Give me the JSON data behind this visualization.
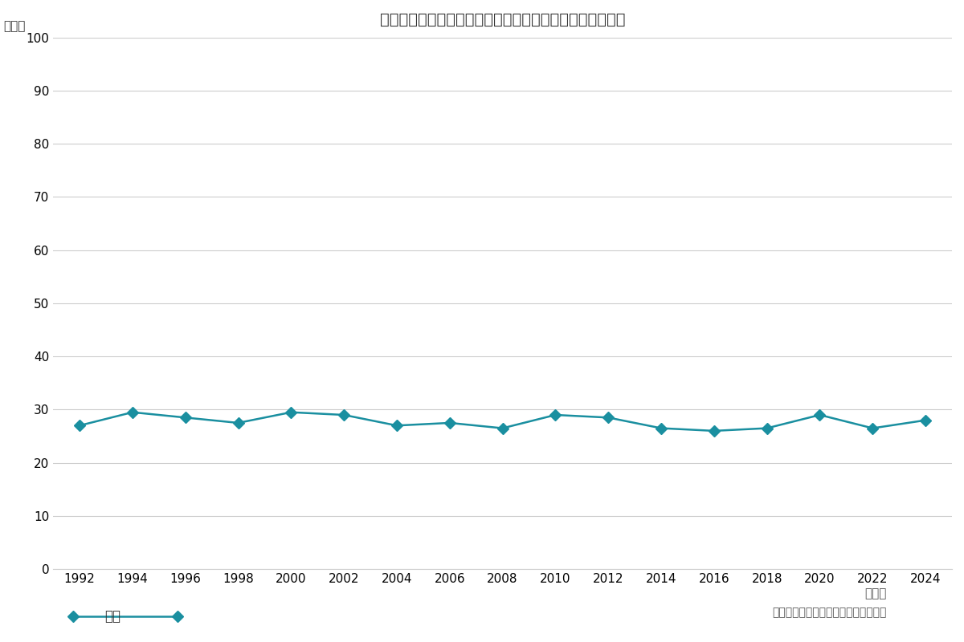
{
  "title": "同じ会社の異性を食事やお酒に１対１で誘ったことがある",
  "ylabel": "（％）",
  "xlabel_suffix": "（年）",
  "source_label": "（博報堂生活総研「生活定点」調査）",
  "legend_label": "全体",
  "years": [
    1992,
    1994,
    1996,
    1998,
    2000,
    2002,
    2004,
    2006,
    2008,
    2010,
    2012,
    2014,
    2016,
    2018,
    2020,
    2022,
    2024
  ],
  "values": [
    27.0,
    29.5,
    28.5,
    27.5,
    29.5,
    29.0,
    27.0,
    27.5,
    26.5,
    29.0,
    28.5,
    26.5,
    26.0,
    26.5,
    29.0,
    26.5,
    28.0
  ],
  "line_color": "#1a8fa0",
  "marker_color": "#1a8fa0",
  "background_color": "#ffffff",
  "grid_color": "#cccccc",
  "ylim": [
    0,
    100
  ],
  "yticks": [
    0,
    10,
    20,
    30,
    40,
    50,
    60,
    70,
    80,
    90,
    100
  ],
  "title_fontsize": 14,
  "axis_label_fontsize": 11,
  "tick_fontsize": 11,
  "legend_fontsize": 12
}
